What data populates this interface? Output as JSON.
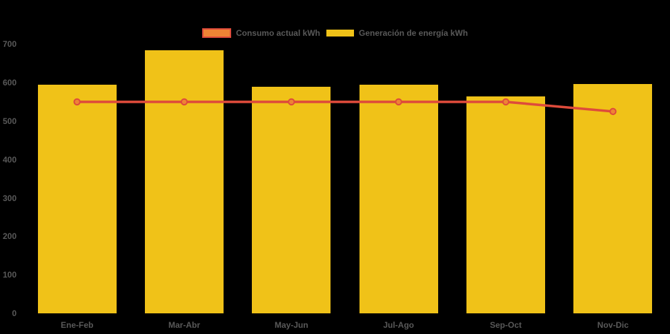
{
  "chart_data": {
    "type": "bar",
    "title": "",
    "xlabel": "",
    "ylabel": "",
    "categories": [
      "Ene-Feb",
      "Mar-Abr",
      "May-Jun",
      "Jul-Ago",
      "Sep-Oct",
      "Nov-Dic"
    ],
    "series": [
      {
        "name": "Consumo actual kWh",
        "type": "line",
        "values": [
          550,
          550,
          550,
          550,
          550,
          525
        ],
        "color": "#de4b3b",
        "marker_fill": "#ee8434"
      },
      {
        "name": "Generación de energía kWh",
        "type": "bar",
        "values": [
          595,
          685,
          590,
          595,
          565,
          597
        ],
        "color": "#f0c218"
      }
    ],
    "ylim": [
      0,
      700
    ],
    "yticks": [
      0,
      100,
      200,
      300,
      400,
      500,
      600,
      700
    ],
    "grid": false,
    "legend_position": "top-center",
    "background_color": "#000000",
    "text_color": "#595959"
  }
}
